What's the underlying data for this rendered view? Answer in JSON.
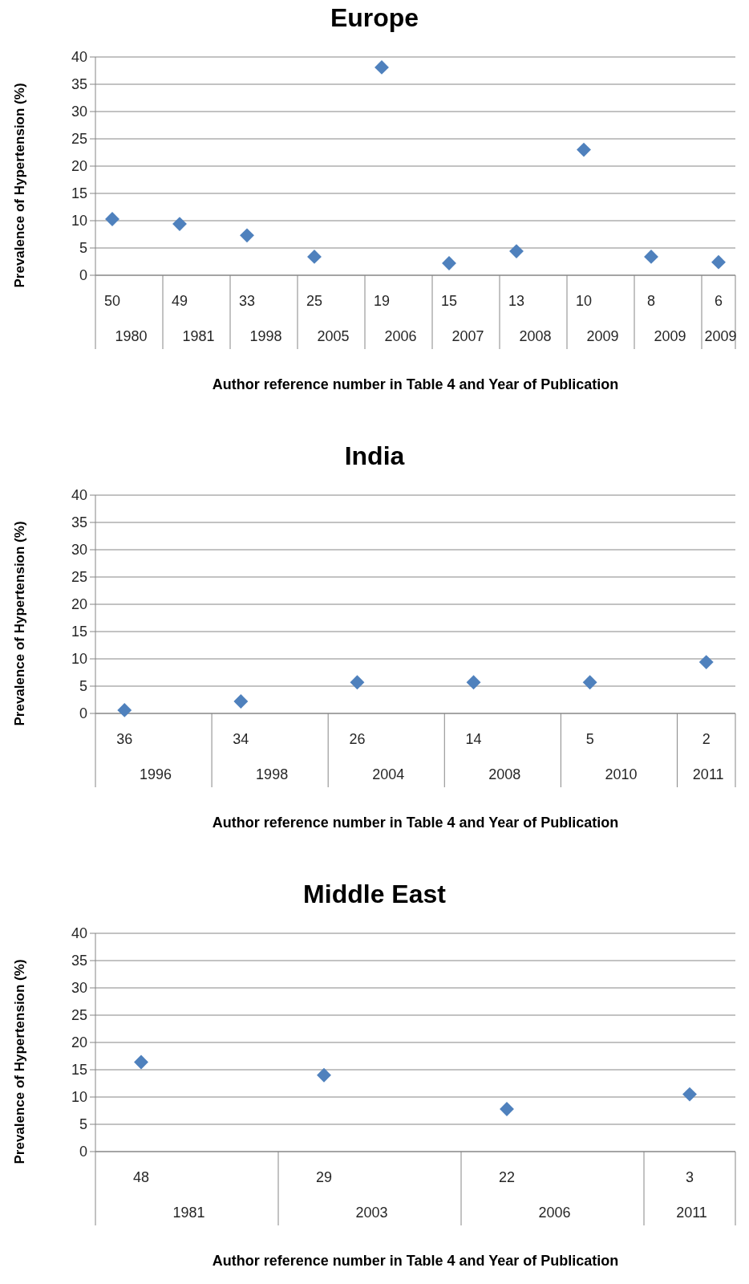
{
  "chart_data": [
    {
      "type": "scatter",
      "title": "Europe",
      "ylabel": "Prevalence of Hypertension (%)",
      "xlabel": "Author reference number in Table 4 and Year of Publication",
      "categories": [
        "50\n1980",
        "49\n1981",
        "33\n1998",
        "25\n2005",
        "19\n2006",
        "15\n2007",
        "13\n2008",
        "10\n2009",
        "8\n2009",
        "6\n2009"
      ],
      "values": [
        10.3,
        9.4,
        7.3,
        3.4,
        38.1,
        2.2,
        4.4,
        23,
        3.4,
        2.4
      ],
      "color": "#4f81bd",
      "marker": "diamond",
      "ylim": [
        0,
        40
      ],
      "yticks": [
        0,
        5,
        10,
        15,
        20,
        25,
        30,
        35,
        40
      ],
      "grid": "y"
    },
    {
      "type": "scatter",
      "title": "India",
      "ylabel": "Prevalence of Hypertension (%)",
      "xlabel": "Author reference number in Table 4 and Year of Publication",
      "categories": [
        "36\n1996",
        "34\n1998",
        "26\n2004",
        "14\n2008",
        "5\n2010",
        "2\n2011"
      ],
      "values": [
        0.6,
        2.2,
        5.7,
        5.7,
        5.7,
        9.4
      ],
      "color": "#4f81bd",
      "marker": "diamond",
      "ylim": [
        0,
        40
      ],
      "yticks": [
        0,
        5,
        10,
        15,
        20,
        25,
        30,
        35,
        40
      ],
      "grid": "y"
    },
    {
      "type": "scatter",
      "title": "Middle East",
      "ylabel": "Prevalence of Hypertension (%)",
      "xlabel": "Author reference number in Table 4 and Year of Publication",
      "categories": [
        "48\n1981",
        "29\n2003",
        "22\n2006",
        "3\n2011"
      ],
      "values": [
        16.4,
        14,
        7.8,
        10.5
      ],
      "color": "#4f81bd",
      "marker": "diamond",
      "ylim": [
        0,
        40
      ],
      "yticks": [
        0,
        5,
        10,
        15,
        20,
        25,
        30,
        35,
        40
      ],
      "grid": "y"
    }
  ]
}
